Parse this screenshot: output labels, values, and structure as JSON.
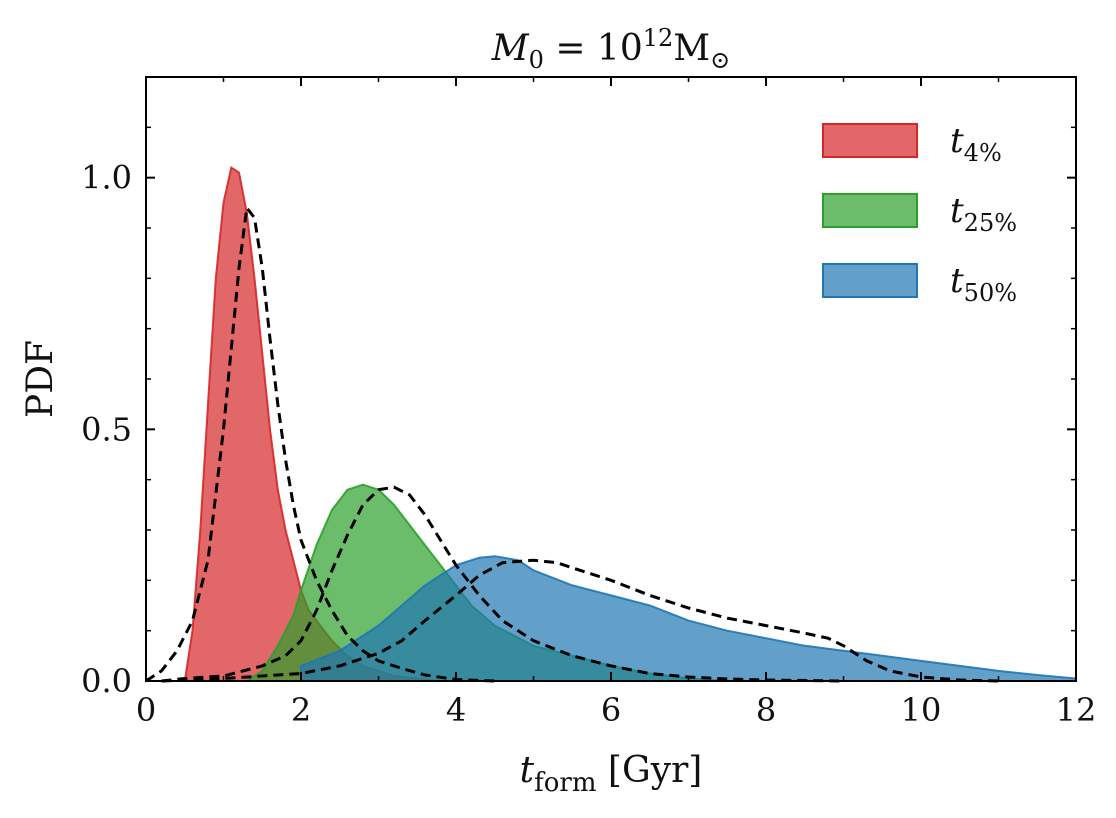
{
  "chart_data": {
    "type": "area",
    "title": {
      "main": "M",
      "sub": "0",
      "mid": " = 10",
      "sup": "12",
      "tail": "M",
      "tail_sub": "⊙"
    },
    "xlabel": {
      "main": "t",
      "sub": "form",
      "tail": " [Gyr]"
    },
    "ylabel": "PDF",
    "xlim": [
      0,
      12
    ],
    "ylim": [
      0,
      1.2
    ],
    "xticks": [
      "0",
      "2",
      "4",
      "6",
      "8",
      "10",
      "12"
    ],
    "yticks": [
      "0.0",
      "0.5",
      "1.0"
    ],
    "legend_position": "top-right",
    "grid": false,
    "series": [
      {
        "name": {
          "main": "t",
          "sub": "4%"
        },
        "kind": "filled",
        "color": "#d62728",
        "x": [
          0.5,
          0.6,
          0.7,
          0.8,
          0.9,
          1.0,
          1.1,
          1.2,
          1.3,
          1.4,
          1.5,
          1.6,
          1.7,
          1.8,
          1.9,
          2.0,
          2.1,
          2.2,
          2.4,
          2.6,
          2.8,
          3.0,
          3.2,
          3.5,
          3.8
        ],
        "y": [
          0.0,
          0.1,
          0.3,
          0.55,
          0.8,
          0.95,
          1.02,
          1.01,
          0.93,
          0.8,
          0.65,
          0.5,
          0.38,
          0.3,
          0.24,
          0.18,
          0.14,
          0.12,
          0.08,
          0.05,
          0.03,
          0.02,
          0.01,
          0.005,
          0.0
        ]
      },
      {
        "name": {
          "main": "t",
          "sub": "25%"
        },
        "kind": "filled",
        "color": "#2ca02c",
        "x": [
          1.3,
          1.5,
          1.7,
          1.9,
          2.0,
          2.2,
          2.4,
          2.6,
          2.8,
          3.0,
          3.2,
          3.4,
          3.6,
          3.8,
          4.0,
          4.2,
          4.5,
          5.0,
          5.5,
          6.0,
          6.5,
          7.0,
          7.5
        ],
        "y": [
          0.0,
          0.02,
          0.07,
          0.13,
          0.18,
          0.27,
          0.34,
          0.38,
          0.39,
          0.38,
          0.35,
          0.31,
          0.27,
          0.23,
          0.19,
          0.15,
          0.11,
          0.07,
          0.05,
          0.03,
          0.015,
          0.005,
          0.0
        ]
      },
      {
        "name": {
          "main": "t",
          "sub": "50%"
        },
        "kind": "filled",
        "color": "#1f77b4",
        "x": [
          2.0,
          2.5,
          3.0,
          3.3,
          3.6,
          4.0,
          4.3,
          4.5,
          4.8,
          5.0,
          5.5,
          6.0,
          6.5,
          7.0,
          7.5,
          8.0,
          8.5,
          9.0,
          9.5,
          10.0,
          10.5,
          11.0,
          11.5,
          12.0
        ],
        "y": [
          0.03,
          0.06,
          0.11,
          0.15,
          0.19,
          0.23,
          0.245,
          0.248,
          0.24,
          0.22,
          0.19,
          0.17,
          0.15,
          0.12,
          0.1,
          0.085,
          0.07,
          0.06,
          0.05,
          0.04,
          0.03,
          0.02,
          0.012,
          0.005
        ]
      },
      {
        "kind": "dashed",
        "color": "#000000",
        "x": [
          0.0,
          0.2,
          0.4,
          0.6,
          0.8,
          1.0,
          1.2,
          1.3,
          1.4,
          1.5,
          1.6,
          1.7,
          1.8,
          1.9,
          2.0,
          2.2,
          2.4,
          2.6,
          2.8,
          3.0,
          3.3,
          3.6,
          4.0,
          4.5
        ],
        "y": [
          0.0,
          0.02,
          0.06,
          0.12,
          0.24,
          0.5,
          0.82,
          0.94,
          0.92,
          0.82,
          0.68,
          0.55,
          0.44,
          0.35,
          0.28,
          0.2,
          0.14,
          0.09,
          0.06,
          0.04,
          0.025,
          0.012,
          0.003,
          0.0
        ]
      },
      {
        "kind": "dashed",
        "color": "#000000",
        "x": [
          0.2,
          0.5,
          1.0,
          1.5,
          1.8,
          2.0,
          2.2,
          2.4,
          2.6,
          2.8,
          3.0,
          3.2,
          3.4,
          3.6,
          3.8,
          4.0,
          4.3,
          4.6,
          5.0,
          5.5,
          6.0,
          6.5,
          7.0,
          7.5,
          8.0,
          9.0
        ],
        "y": [
          0.0,
          0.005,
          0.01,
          0.03,
          0.05,
          0.08,
          0.14,
          0.22,
          0.29,
          0.35,
          0.38,
          0.385,
          0.37,
          0.33,
          0.28,
          0.23,
          0.17,
          0.12,
          0.08,
          0.05,
          0.03,
          0.015,
          0.008,
          0.004,
          0.002,
          0.0
        ]
      },
      {
        "kind": "dashed",
        "color": "#000000",
        "x": [
          0.2,
          1.0,
          2.0,
          2.5,
          3.0,
          3.3,
          3.6,
          4.0,
          4.3,
          4.6,
          5.0,
          5.3,
          5.6,
          6.0,
          6.5,
          7.0,
          7.5,
          8.0,
          8.5,
          8.8,
          9.0,
          9.3,
          9.6,
          10.0,
          10.5,
          11.0
        ],
        "y": [
          0.0,
          0.005,
          0.015,
          0.03,
          0.055,
          0.08,
          0.12,
          0.17,
          0.21,
          0.235,
          0.24,
          0.235,
          0.22,
          0.2,
          0.17,
          0.145,
          0.125,
          0.11,
          0.095,
          0.085,
          0.07,
          0.04,
          0.02,
          0.008,
          0.002,
          0.0
        ]
      }
    ]
  }
}
